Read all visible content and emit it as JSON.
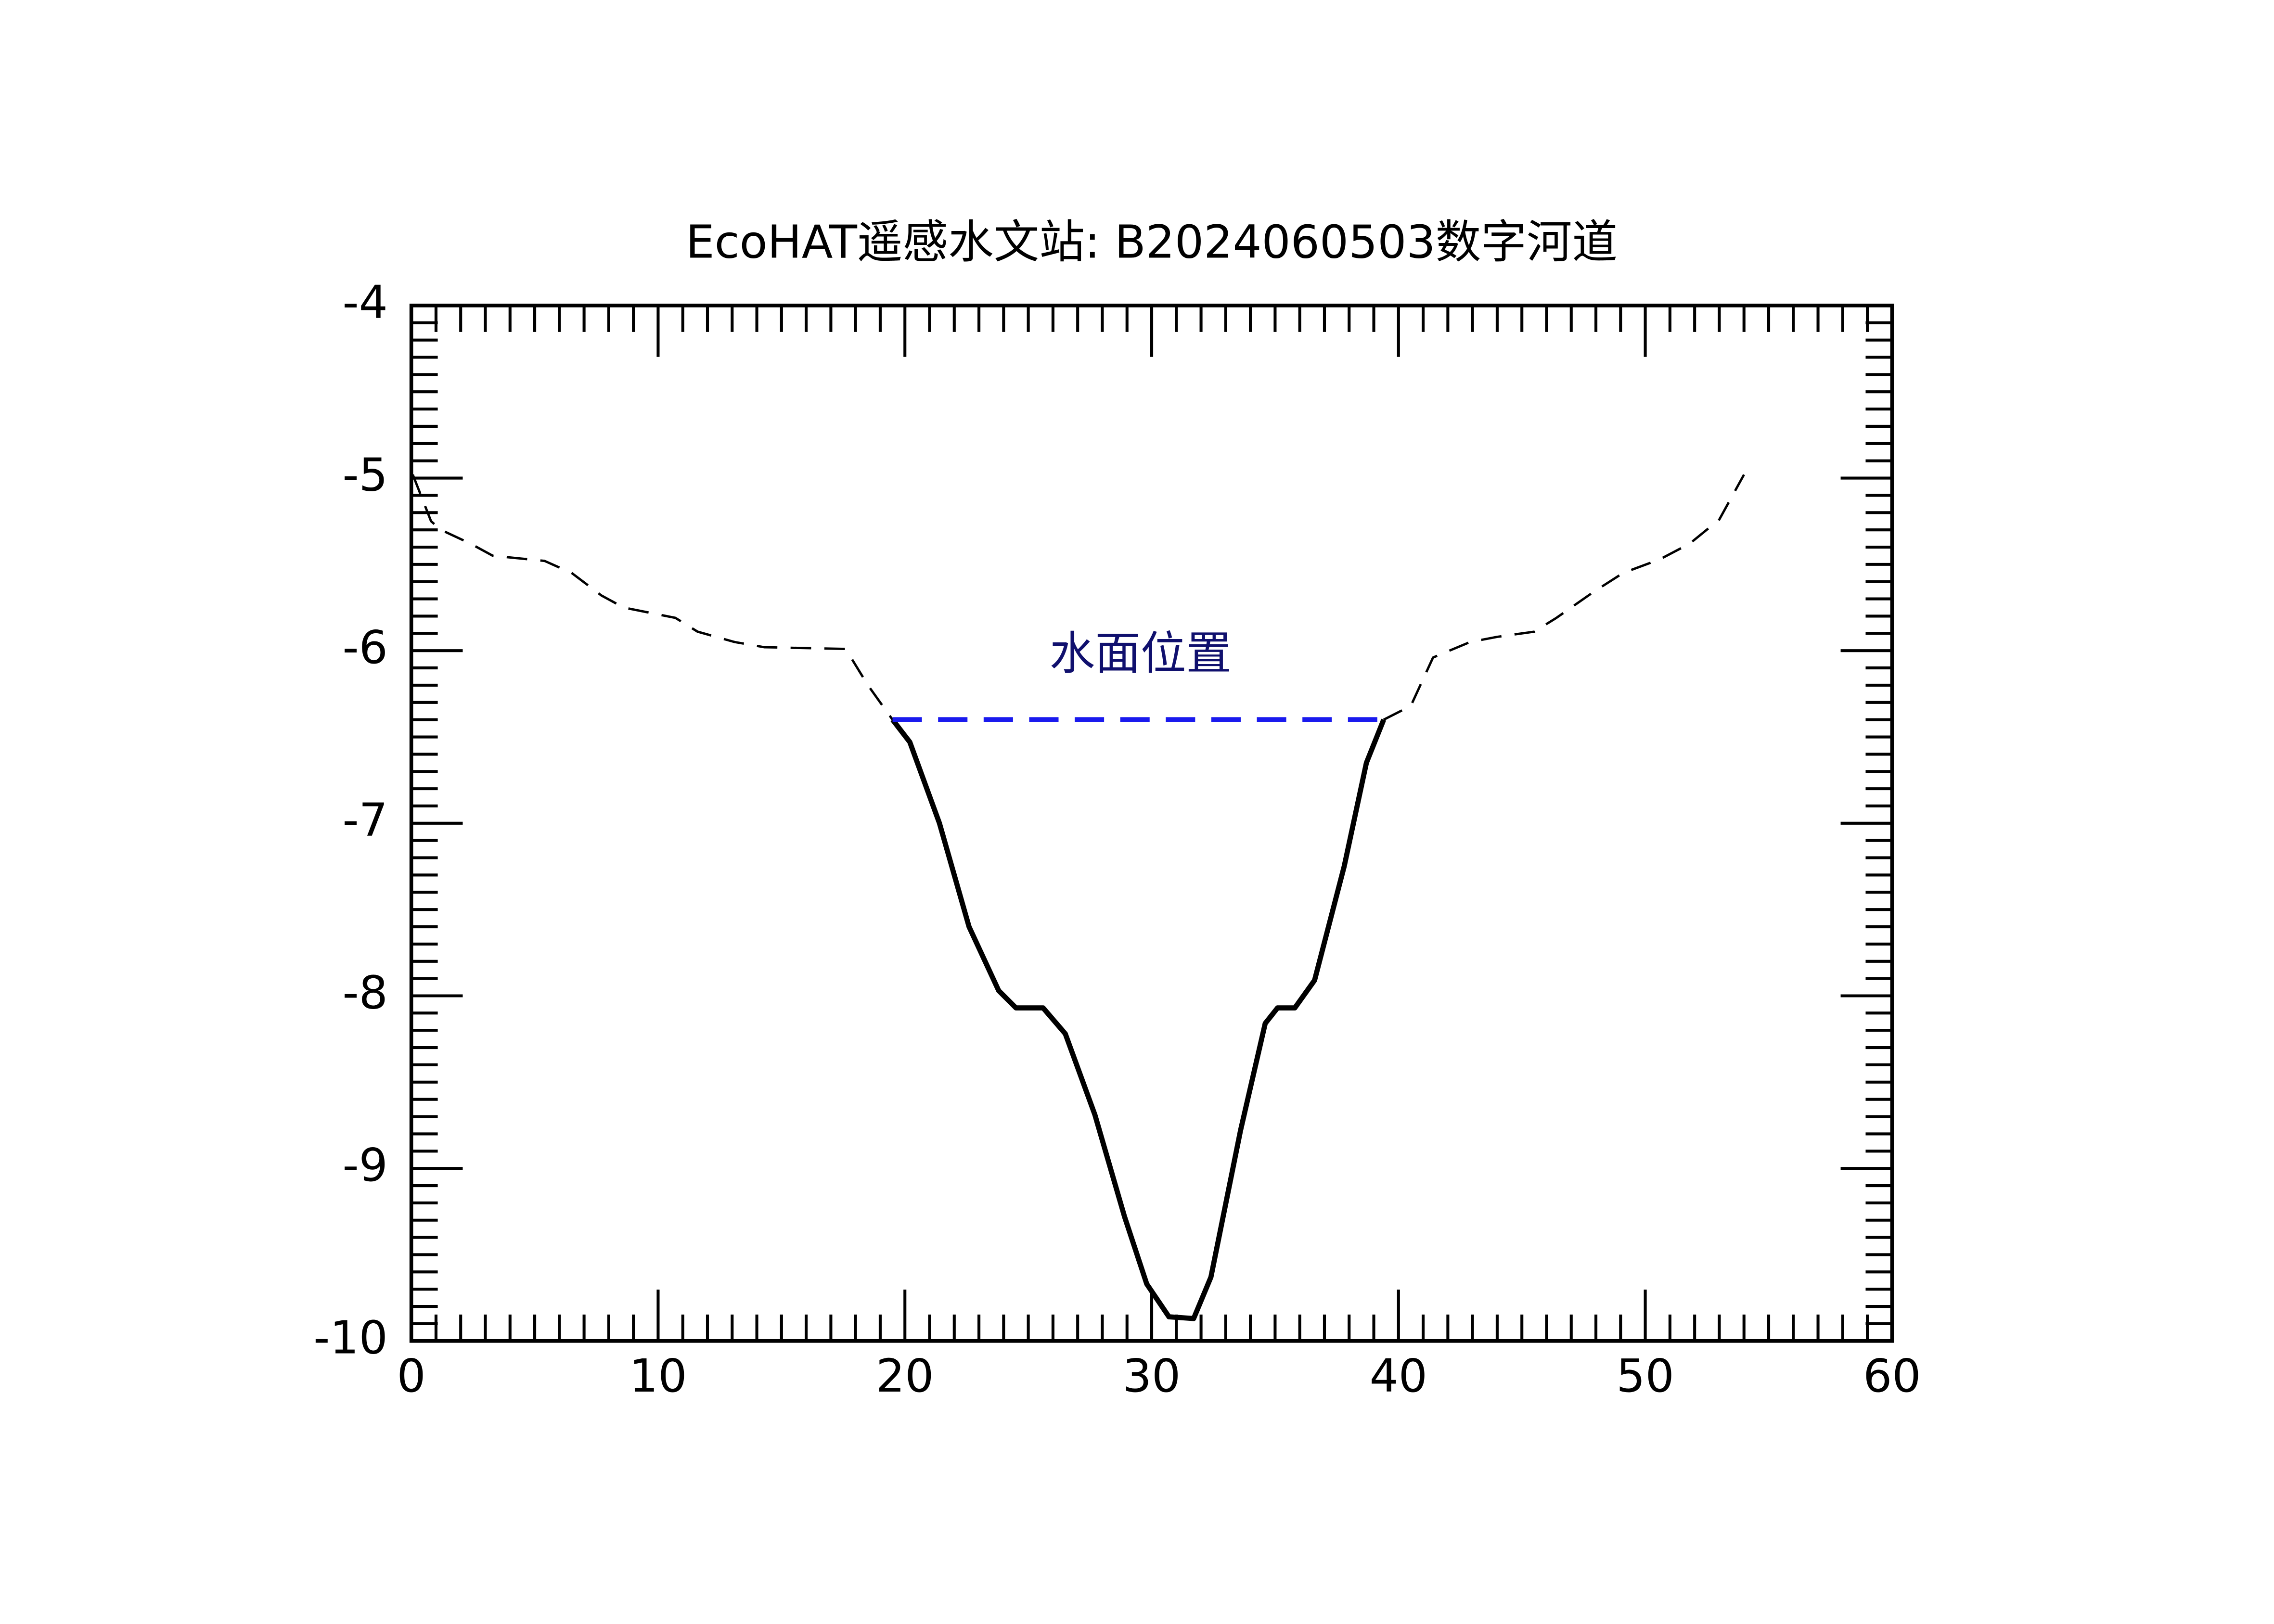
{
  "chart_data": {
    "type": "line",
    "title": "EcoHAT遥感水文站: B2024060503数字河道",
    "annotation": "水面位置",
    "xlim": [
      0,
      60
    ],
    "xticks": [
      0,
      10,
      20,
      30,
      40,
      50,
      60
    ],
    "ylim": [
      -10,
      -4
    ],
    "yticks": [
      -4,
      -5,
      -6,
      -7,
      -8,
      -9,
      -10
    ],
    "series": [
      {
        "color": "#000000",
        "dashed": true,
        "x": [
          0.06,
          0.8,
          1.2,
          2.4,
          3.3,
          5.4,
          6.5,
          7.7,
          8.6,
          10.7,
          11.6,
          13.1,
          14.3,
          17.6,
          18.5,
          19.5
        ],
        "values": [
          -4.98,
          -5.25,
          -5.3,
          -5.38,
          -5.45,
          -5.48,
          -5.55,
          -5.68,
          -5.75,
          -5.81,
          -5.89,
          -5.95,
          -5.98,
          -5.99,
          -6.2,
          -6.4
        ]
      },
      {
        "color": "#000000",
        "dashed": false,
        "x": [
          19.5,
          20.2,
          21.4,
          22.6,
          23.8,
          24.5,
          25.6,
          26.5,
          27.7,
          28.9,
          29.8,
          30.7,
          31.7,
          32.4,
          33.6,
          34.6,
          35.1,
          35.8,
          36.6,
          37.8,
          38.7,
          39.4
        ],
        "values": [
          -6.4,
          -6.53,
          -7.0,
          -7.6,
          -7.97,
          -8.07,
          -8.07,
          -8.22,
          -8.69,
          -9.28,
          -9.67,
          -9.86,
          -9.87,
          -9.63,
          -8.78,
          -8.16,
          -8.07,
          -8.07,
          -7.91,
          -7.25,
          -6.65,
          -6.4
        ]
      },
      {
        "color": "#000000",
        "dashed": true,
        "x": [
          39.4,
          40.5,
          41.4,
          42.9,
          44.0,
          45.5,
          46.4,
          47.9,
          49.1,
          50.6,
          51.8,
          53.0,
          54.0
        ],
        "values": [
          -6.4,
          -6.32,
          -6.04,
          -5.95,
          -5.92,
          -5.89,
          -5.81,
          -5.66,
          -5.55,
          -5.47,
          -5.38,
          -5.24,
          -4.98
        ]
      },
      {
        "color": "#1a1aee",
        "dashed": true,
        "x": [
          19.5,
          39.6
        ],
        "values": [
          -6.4,
          -6.4
        ]
      }
    ]
  }
}
